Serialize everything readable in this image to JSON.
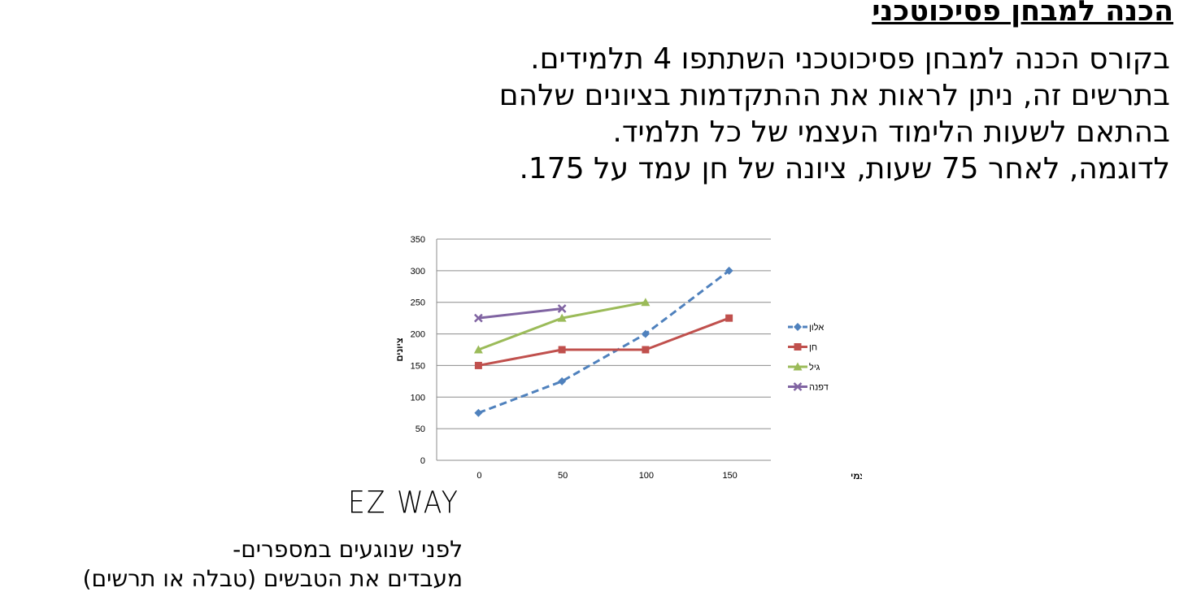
{
  "page": {
    "title": "הכנה למבחן פסיכוטכני",
    "intro_lines": [
      "בקורס הכנה למבחן פסיכוטכני השתתפו 4 תלמידים.",
      "בתרשים זה, ניתן לראות את ההתקדמות בציונים שלהם",
      "בהתאם לשעות הלימוד העצמי של כל תלמיד.",
      "לדוגמה, לאחר 75 שעות, ציונה של חן עמד על 175."
    ],
    "ez_way": "EZ WAY",
    "tip_lines": [
      "לפני שנוגעים במספרים-",
      "מעבדים את הטבשים (טבלה או תרשים)"
    ]
  },
  "chart_data": {
    "type": "line",
    "title": "",
    "xlabel": "שעות לימוד עצמי",
    "ylabel": "ציונים",
    "x_ticks": [
      0,
      50,
      100,
      150
    ],
    "y_ticks": [
      0,
      50,
      100,
      150,
      200,
      250,
      300,
      350
    ],
    "ylim": [
      0,
      350
    ],
    "grid": "horizontal",
    "legend_position": "right",
    "series": [
      {
        "name": "אלון",
        "color": "#4f81bd",
        "marker": "diamond",
        "dash": "dashed",
        "x": [
          0,
          50,
          100,
          150
        ],
        "y": [
          75,
          125,
          200,
          300
        ]
      },
      {
        "name": "חן",
        "color": "#c0504d",
        "marker": "square",
        "dash": "solid",
        "x": [
          0,
          50,
          100,
          150
        ],
        "y": [
          150,
          175,
          175,
          225
        ]
      },
      {
        "name": "גיל",
        "color": "#9bbb59",
        "marker": "triangle",
        "dash": "solid",
        "x": [
          0,
          50,
          100
        ],
        "y": [
          175,
          225,
          250
        ]
      },
      {
        "name": "דפנה",
        "color": "#8064a2",
        "marker": "x",
        "dash": "solid",
        "x": [
          0,
          50
        ],
        "y": [
          225,
          240
        ]
      }
    ]
  }
}
